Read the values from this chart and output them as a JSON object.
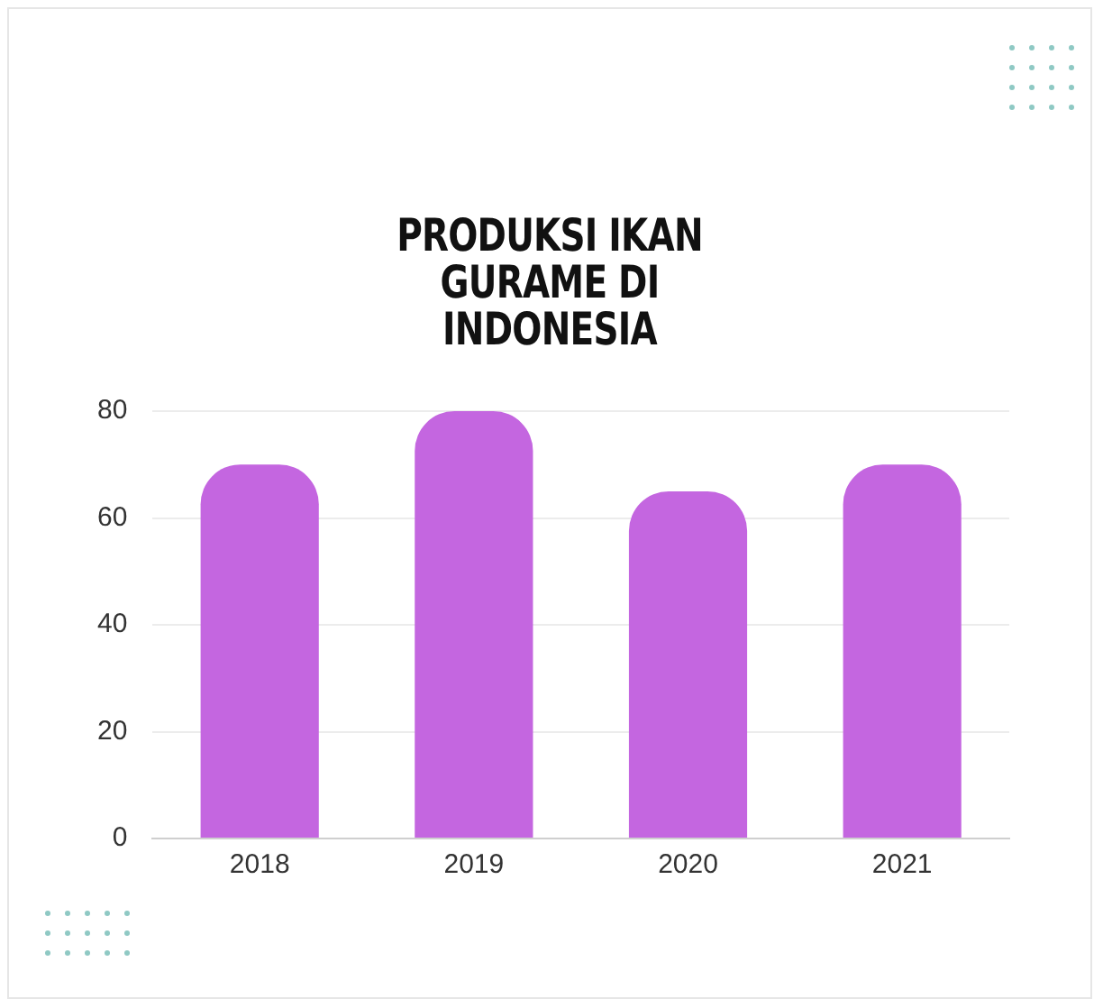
{
  "chart_data": {
    "type": "bar",
    "title": "PRODUKSI IKAN GURAME DI INDONESIA",
    "categories": [
      "2018",
      "2019",
      "2020",
      "2021"
    ],
    "values": [
      70,
      80,
      65,
      70
    ],
    "color": "#c466e0",
    "ylim": [
      0,
      80
    ],
    "yticks": [
      0,
      20,
      40,
      60,
      80
    ],
    "grid": "y",
    "legend": false
  }
}
